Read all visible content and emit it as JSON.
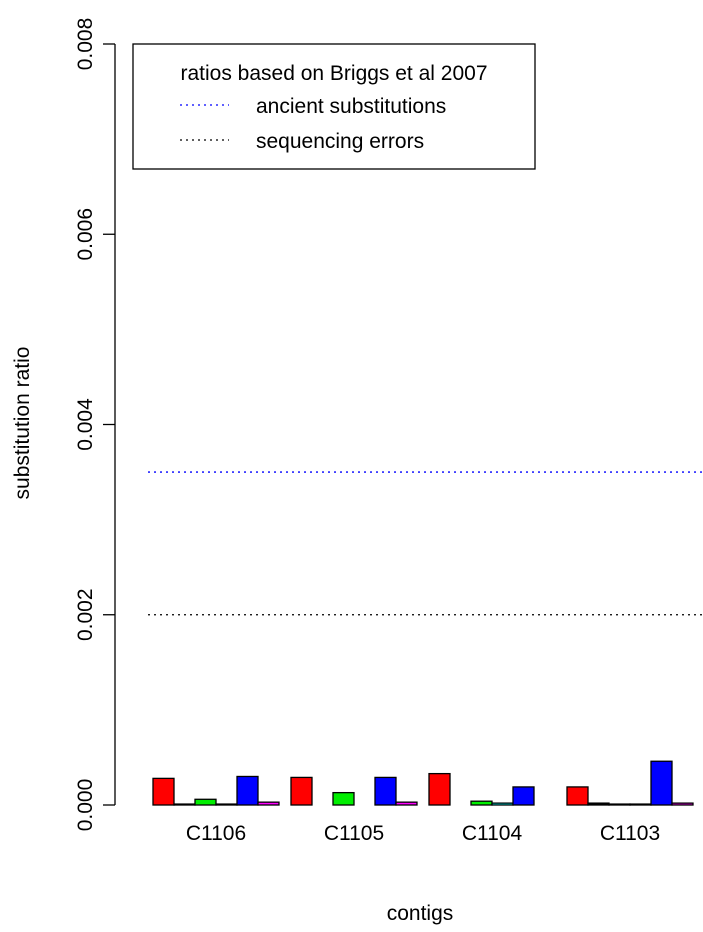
{
  "chart_data": {
    "type": "bar",
    "xlabel": "contigs",
    "ylabel": "substitution ratio",
    "ylim": [
      0,
      0.008
    ],
    "yticks": [
      "0.000",
      "0.002",
      "0.004",
      "0.006",
      "0.008"
    ],
    "ytick_values": [
      0,
      0.002,
      0.004,
      0.006,
      0.008
    ],
    "categories": [
      "C1106",
      "C1105",
      "C1104",
      "C1103"
    ],
    "series": [
      {
        "color": "#ff0000",
        "values": [
          0.00028,
          0.00029,
          0.00033,
          0.00019
        ]
      },
      {
        "color": "#000000",
        "values": [
          1e-05,
          0.0,
          0.0,
          2e-05
        ]
      },
      {
        "color": "#00ee00",
        "values": [
          6e-05,
          0.00013,
          4e-05,
          1e-05
        ]
      },
      {
        "color": "#00ffff",
        "values": [
          1e-05,
          0.0,
          2e-05,
          1e-05
        ]
      },
      {
        "color": "#0000ff",
        "values": [
          0.0003,
          0.00029,
          0.00019,
          0.00046
        ]
      },
      {
        "color": "#ff00ff",
        "values": [
          3e-05,
          3e-05,
          0.0,
          2e-05
        ]
      }
    ],
    "reference_lines": [
      {
        "name": "ancient substitutions",
        "value": 0.0035,
        "color": "#0000ff",
        "style": "dotted"
      },
      {
        "name": "sequencing errors",
        "value": 0.002,
        "color": "#000000",
        "style": "dotted"
      }
    ],
    "legend": {
      "title": "ratios based on Briggs et al 2007",
      "position": "top-left",
      "entries": [
        "ancient substitutions",
        "sequencing errors"
      ]
    },
    "grid": false
  }
}
